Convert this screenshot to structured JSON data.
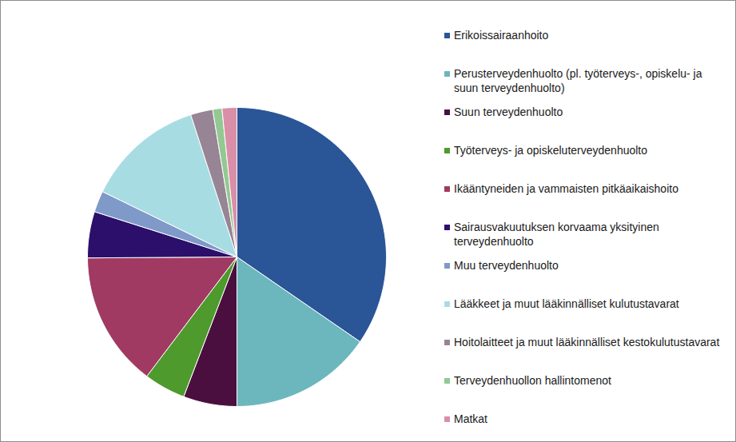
{
  "chart_data": {
    "type": "pie",
    "categories": [
      "Erikoissairaanhoito",
      "Perusterveydenhuolto (pl. työterveys-, opiskelu- ja suun terveydenhuolto)",
      "Suun terveydenhuolto",
      "Työterveys- ja opiskeluterveydenhuolto",
      "Ikääntyneiden ja vammaisten pitkäaikaishoito",
      "Sairausvakuutuksen korvaama yksityinen terveydenhuolto",
      "Muu terveydenhuolto",
      "Lääkkeet ja muut lääkinnälliset kulutustavarat",
      "Hoitolaitteet ja muut lääkinnälliset kestokulutustavarat",
      "Terveydenhuollon hallintomenot",
      "Matkat"
    ],
    "values": [
      34.6,
      15.4,
      5.8,
      4.5,
      14.6,
      5.0,
      2.3,
      12.8,
      2.4,
      1.0,
      1.6
    ],
    "colors": [
      "#2a5597",
      "#6bb7bd",
      "#4b0f3f",
      "#4e9a2d",
      "#a03a63",
      "#2c0f6b",
      "#7f99c9",
      "#a8dce3",
      "#978495",
      "#93c892",
      "#d98fa8"
    ],
    "legend": "right"
  }
}
